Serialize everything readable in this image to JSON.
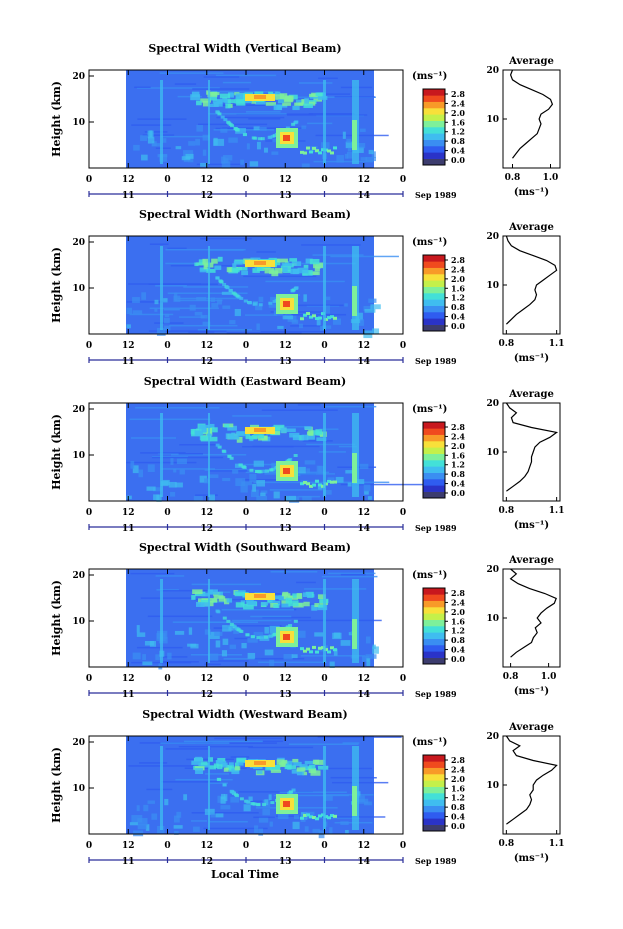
{
  "chart_data": [
    {
      "type": "heatmap",
      "title": "Spectral Width (Vertical Beam)",
      "ylabel": "Height (km)",
      "ylim": [
        0,
        20
      ],
      "yticks": [
        "10",
        "20"
      ],
      "xticks": [
        "0",
        "12",
        "0",
        "12",
        "0",
        "12",
        "0",
        "12",
        "0"
      ],
      "dates": [
        "11",
        "12",
        "13",
        "14"
      ],
      "date_suffix": "Sep 1989",
      "colorbar": {
        "unit": "(ms⁻¹)",
        "ticks": [
          "0.0",
          "0.4",
          "0.8",
          "1.2",
          "1.6",
          "2.0",
          "2.4",
          "2.8"
        ]
      },
      "average": {
        "title": "Average",
        "xlabel": "(ms⁻¹)",
        "xticks": [
          "0.8",
          "1.0"
        ],
        "yticks": [
          "10",
          "20"
        ],
        "xlim": [
          0.75,
          1.05
        ],
        "profile": [
          [
            2,
            0.8
          ],
          [
            3,
            0.82
          ],
          [
            4,
            0.84
          ],
          [
            5,
            0.87
          ],
          [
            6,
            0.9
          ],
          [
            7,
            0.93
          ],
          [
            8,
            0.94
          ],
          [
            9,
            0.95
          ],
          [
            10,
            0.94
          ],
          [
            11,
            0.95
          ],
          [
            12,
            0.99
          ],
          [
            13,
            1.01
          ],
          [
            14,
            1.0
          ],
          [
            15,
            0.96
          ],
          [
            16,
            0.9
          ],
          [
            17,
            0.84
          ],
          [
            18,
            0.8
          ],
          [
            19,
            0.79
          ],
          [
            20,
            0.8
          ]
        ]
      }
    },
    {
      "type": "heatmap",
      "title": "Spectral Width (Northward Beam)",
      "ylabel": "Height (km)",
      "ylim": [
        0,
        20
      ],
      "yticks": [
        "10",
        "20"
      ],
      "xticks": [
        "0",
        "12",
        "0",
        "12",
        "0",
        "12",
        "0",
        "12",
        "0"
      ],
      "dates": [
        "11",
        "12",
        "13",
        "14"
      ],
      "date_suffix": "Sep 1989",
      "colorbar": {
        "unit": "(ms⁻¹)",
        "ticks": [
          "0.0",
          "0.4",
          "0.8",
          "1.2",
          "1.6",
          "2.0",
          "2.4",
          "2.8"
        ]
      },
      "average": {
        "title": "Average",
        "xlabel": "(ms⁻¹)",
        "xticks": [
          "0.8",
          "1.1"
        ],
        "yticks": [
          "10",
          "20"
        ],
        "xlim": [
          0.78,
          1.12
        ],
        "profile": [
          [
            2,
            0.8
          ],
          [
            3,
            0.83
          ],
          [
            4,
            0.86
          ],
          [
            5,
            0.9
          ],
          [
            6,
            0.94
          ],
          [
            7,
            0.97
          ],
          [
            8,
            0.98
          ],
          [
            9,
            0.97
          ],
          [
            10,
            0.98
          ],
          [
            11,
            1.02
          ],
          [
            12,
            1.06
          ],
          [
            13,
            1.1
          ],
          [
            14,
            1.09
          ],
          [
            15,
            1.04
          ],
          [
            16,
            0.96
          ],
          [
            17,
            0.88
          ],
          [
            18,
            0.83
          ],
          [
            19,
            0.81
          ],
          [
            20,
            0.8
          ]
        ]
      }
    },
    {
      "type": "heatmap",
      "title": "Spectral Width (Eastward Beam)",
      "ylabel": "Height (km)",
      "ylim": [
        0,
        20
      ],
      "yticks": [
        "10",
        "20"
      ],
      "xticks": [
        "0",
        "12",
        "0",
        "12",
        "0",
        "12",
        "0",
        "12",
        "0"
      ],
      "dates": [
        "11",
        "12",
        "13",
        "14"
      ],
      "date_suffix": "Sep 1989",
      "colorbar": {
        "unit": "(ms⁻¹)",
        "ticks": [
          "0.0",
          "0.4",
          "0.8",
          "1.2",
          "1.6",
          "2.0",
          "2.4",
          "2.8"
        ]
      },
      "average": {
        "title": "Average",
        "xlabel": "(ms⁻¹)",
        "xticks": [
          "0.8",
          "1.1"
        ],
        "yticks": [
          "10",
          "20"
        ],
        "xlim": [
          0.78,
          1.12
        ],
        "profile": [
          [
            2,
            0.8
          ],
          [
            3,
            0.84
          ],
          [
            4,
            0.88
          ],
          [
            5,
            0.91
          ],
          [
            6,
            0.93
          ],
          [
            7,
            0.94
          ],
          [
            8,
            0.95
          ],
          [
            9,
            0.95
          ],
          [
            10,
            0.96
          ],
          [
            11,
            0.97
          ],
          [
            12,
            1.0
          ],
          [
            13,
            1.06
          ],
          [
            14,
            1.1
          ],
          [
            15,
            0.95
          ],
          [
            16,
            0.84
          ],
          [
            17,
            0.83
          ],
          [
            18,
            0.86
          ],
          [
            19,
            0.82
          ],
          [
            20,
            0.8
          ]
        ]
      }
    },
    {
      "type": "heatmap",
      "title": "Spectral Width (Southward Beam)",
      "ylabel": "Height (km)",
      "ylim": [
        0,
        20
      ],
      "yticks": [
        "10",
        "20"
      ],
      "xticks": [
        "0",
        "12",
        "0",
        "12",
        "0",
        "12",
        "0",
        "12",
        "0"
      ],
      "dates": [
        "11",
        "12",
        "13",
        "14"
      ],
      "date_suffix": "Sep 1989",
      "colorbar": {
        "unit": "(ms⁻¹)",
        "ticks": [
          "0.0",
          "0.4",
          "0.8",
          "1.2",
          "1.6",
          "2.0",
          "2.4",
          "2.8"
        ]
      },
      "average": {
        "title": "Average",
        "xlabel": "(ms⁻¹)",
        "xticks": [
          "0.8",
          "1.0"
        ],
        "yticks": [
          "10",
          "20"
        ],
        "xlim": [
          0.76,
          1.06
        ],
        "profile": [
          [
            2,
            0.8
          ],
          [
            3,
            0.83
          ],
          [
            4,
            0.87
          ],
          [
            5,
            0.91
          ],
          [
            6,
            0.92
          ],
          [
            7,
            0.94
          ],
          [
            8,
            0.93
          ],
          [
            9,
            0.96
          ],
          [
            10,
            0.94
          ],
          [
            11,
            0.96
          ],
          [
            12,
            0.99
          ],
          [
            13,
            1.03
          ],
          [
            14,
            1.04
          ],
          [
            15,
            0.98
          ],
          [
            16,
            0.9
          ],
          [
            17,
            0.84
          ],
          [
            18,
            0.8
          ],
          [
            19,
            0.83
          ],
          [
            20,
            0.8
          ]
        ]
      }
    },
    {
      "type": "heatmap",
      "title": "Spectral Width (Westward Beam)",
      "ylabel": "Height (km)",
      "ylim": [
        0,
        20
      ],
      "yticks": [
        "10",
        "20"
      ],
      "xticks": [
        "0",
        "12",
        "0",
        "12",
        "0",
        "12",
        "0",
        "12",
        "0"
      ],
      "dates": [
        "11",
        "12",
        "13",
        "14"
      ],
      "date_suffix": "Sep 1989",
      "colorbar": {
        "unit": "(ms⁻¹)",
        "ticks": [
          "0.0",
          "0.4",
          "0.8",
          "1.2",
          "1.6",
          "2.0",
          "2.4",
          "2.8"
        ]
      },
      "average": {
        "title": "Average",
        "xlabel": "(ms⁻¹)",
        "xticks": [
          "0.8",
          "1.1"
        ],
        "yticks": [
          "10",
          "20"
        ],
        "xlim": [
          0.78,
          1.12
        ],
        "profile": [
          [
            2,
            0.8
          ],
          [
            3,
            0.84
          ],
          [
            4,
            0.88
          ],
          [
            5,
            0.92
          ],
          [
            6,
            0.94
          ],
          [
            7,
            0.95
          ],
          [
            8,
            0.94
          ],
          [
            9,
            0.96
          ],
          [
            10,
            0.96
          ],
          [
            11,
            0.98
          ],
          [
            12,
            1.02
          ],
          [
            13,
            1.07
          ],
          [
            14,
            1.1
          ],
          [
            15,
            0.96
          ],
          [
            16,
            0.86
          ],
          [
            17,
            0.84
          ],
          [
            18,
            0.88
          ],
          [
            19,
            0.82
          ],
          [
            20,
            0.8
          ]
        ]
      }
    }
  ],
  "footer": {
    "xlabel": "Local Time"
  },
  "colors": {
    "colormap": [
      "#3c3c6e",
      "#2a33c8",
      "#2f5cf0",
      "#3a8ef2",
      "#3fbdf0",
      "#43e0d8",
      "#7ef09a",
      "#c4f04a",
      "#f8e03a",
      "#f89a28",
      "#f04a1e",
      "#c8181e"
    ],
    "background_field": "#3b6ff0",
    "date_axis": "#2a2f9a"
  }
}
